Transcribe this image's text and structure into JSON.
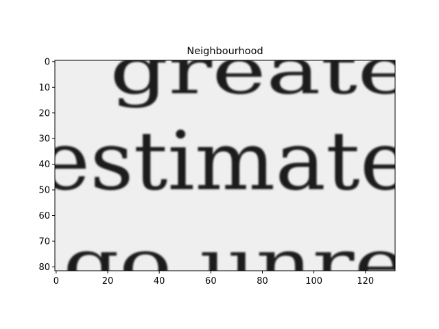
{
  "figure": {
    "title": "Neighbourhood"
  },
  "image": {
    "kind": "grayscale-crop-of-printed-text",
    "words": {
      "top": "greate",
      "middle": "estimate",
      "bottom": "go unre"
    },
    "background_color": "#efefef",
    "ink_color": "#1a1a1a"
  },
  "axes": {
    "x_ticks": [
      "0",
      "20",
      "40",
      "60",
      "80",
      "100",
      "120"
    ],
    "y_ticks": [
      "0",
      "10",
      "20",
      "30",
      "40",
      "50",
      "60",
      "70",
      "80"
    ],
    "x_range": [
      -0.5,
      131.5
    ],
    "y_range": [
      81.5,
      -0.5
    ]
  }
}
